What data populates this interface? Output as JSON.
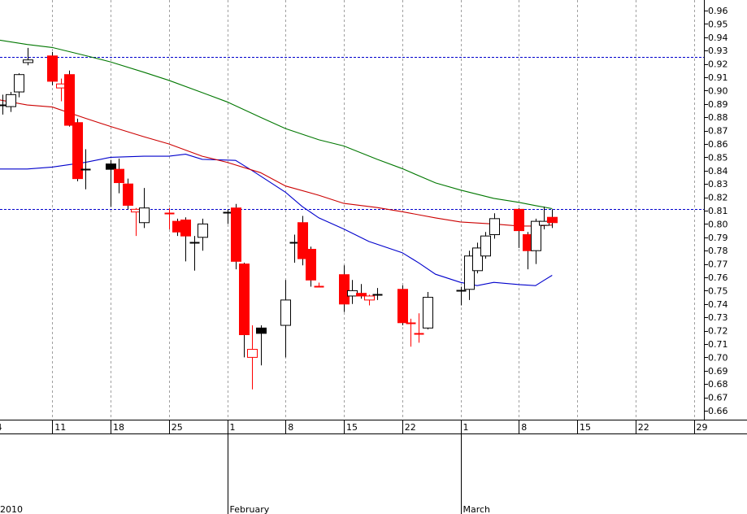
{
  "chart_data": {
    "type": "candlestick",
    "y_axis": {
      "side": "right",
      "min": 0.655,
      "max": 0.968,
      "ticks": [
        "0.96",
        "0.95",
        "0.94",
        "0.93",
        "0.92",
        "0.91",
        "0.90",
        "0.89",
        "0.88",
        "0.87",
        "0.86",
        "0.85",
        "0.84",
        "0.83",
        "0.82",
        "0.81",
        "0.80",
        "0.79",
        "0.78",
        "0.77",
        "0.76",
        "0.75",
        "0.74",
        "0.73",
        "0.72",
        "0.71",
        "0.70",
        "0.69",
        "0.68",
        "0.67",
        "0.66"
      ]
    },
    "x_axis": {
      "start": "2010-01-04",
      "end": "2010-03-22",
      "day_ticks": [
        {
          "date": "2010-01-04",
          "label": "4"
        },
        {
          "date": "2010-01-11",
          "label": "11"
        },
        {
          "date": "2010-01-18",
          "label": "18"
        },
        {
          "date": "2010-01-25",
          "label": "25"
        },
        {
          "date": "2010-02-01",
          "label": "1"
        },
        {
          "date": "2010-02-08",
          "label": "8"
        },
        {
          "date": "2010-02-15",
          "label": "15"
        },
        {
          "date": "2010-02-22",
          "label": "22"
        },
        {
          "date": "2010-03-01",
          "label": "1"
        },
        {
          "date": "2010-03-08",
          "label": "8"
        },
        {
          "date": "2010-03-15",
          "label": "15"
        },
        {
          "date": "2010-03-22",
          "label": "22"
        },
        {
          "date": "2010-03-29",
          "label": "29"
        }
      ],
      "month_labels": [
        {
          "date": "2010-01-01",
          "label": "2010"
        },
        {
          "date": "2010-02-01",
          "label": "February"
        },
        {
          "date": "2010-03-01",
          "label": "March"
        }
      ]
    },
    "grid": true,
    "reference_lines": [
      0.925,
      0.811
    ],
    "candles": [
      {
        "date": "2010-01-04",
        "o": 0.88,
        "h": 0.891,
        "l": 0.874,
        "c": 0.886,
        "style": "up"
      },
      {
        "date": "2010-01-05",
        "o": 0.89,
        "h": 0.897,
        "l": 0.882,
        "c": 0.889,
        "style": "flat"
      },
      {
        "date": "2010-01-06",
        "o": 0.888,
        "h": 0.899,
        "l": 0.884,
        "c": 0.897,
        "style": "up"
      },
      {
        "date": "2010-01-07",
        "o": 0.899,
        "h": 0.913,
        "l": 0.895,
        "c": 0.912,
        "style": "up"
      },
      {
        "date": "2010-01-08",
        "o": 0.921,
        "h": 0.932,
        "l": 0.919,
        "c": 0.923,
        "style": "up"
      },
      {
        "date": "2010-01-11",
        "o": 0.926,
        "h": 0.929,
        "l": 0.904,
        "c": 0.907,
        "style": "down"
      },
      {
        "date": "2010-01-12",
        "o": 0.902,
        "h": 0.909,
        "l": 0.892,
        "c": 0.905,
        "style": "hollow-red"
      },
      {
        "date": "2010-01-13",
        "o": 0.912,
        "h": 0.915,
        "l": 0.873,
        "c": 0.874,
        "style": "down"
      },
      {
        "date": "2010-01-14",
        "o": 0.876,
        "h": 0.879,
        "l": 0.832,
        "c": 0.834,
        "style": "down"
      },
      {
        "date": "2010-01-15",
        "o": 0.841,
        "h": 0.856,
        "l": 0.826,
        "c": 0.841,
        "style": "flat"
      },
      {
        "date": "2010-01-18",
        "o": 0.841,
        "h": 0.848,
        "l": 0.813,
        "c": 0.845,
        "style": "black"
      },
      {
        "date": "2010-01-19",
        "o": 0.841,
        "h": 0.849,
        "l": 0.823,
        "c": 0.831,
        "style": "down"
      },
      {
        "date": "2010-01-20",
        "o": 0.83,
        "h": 0.834,
        "l": 0.811,
        "c": 0.814,
        "style": "down"
      },
      {
        "date": "2010-01-21",
        "o": 0.811,
        "h": 0.812,
        "l": 0.791,
        "c": 0.809,
        "style": "hollow-red"
      },
      {
        "date": "2010-01-22",
        "o": 0.801,
        "h": 0.827,
        "l": 0.797,
        "c": 0.812,
        "style": "up"
      },
      {
        "date": "2010-01-25",
        "o": 0.808,
        "h": 0.812,
        "l": 0.796,
        "c": 0.808,
        "style": "flat-red"
      },
      {
        "date": "2010-01-26",
        "o": 0.802,
        "h": 0.804,
        "l": 0.791,
        "c": 0.794,
        "style": "down"
      },
      {
        "date": "2010-01-27",
        "o": 0.803,
        "h": 0.805,
        "l": 0.772,
        "c": 0.791,
        "style": "down"
      },
      {
        "date": "2010-01-28",
        "o": 0.786,
        "h": 0.791,
        "l": 0.765,
        "c": 0.786,
        "style": "flat"
      },
      {
        "date": "2010-01-29",
        "o": 0.79,
        "h": 0.804,
        "l": 0.78,
        "c": 0.8,
        "style": "up"
      },
      {
        "date": "2010-02-01",
        "o": 0.808,
        "h": 0.811,
        "l": 0.8,
        "c": 0.809,
        "style": "flat"
      },
      {
        "date": "2010-02-02",
        "o": 0.812,
        "h": 0.815,
        "l": 0.766,
        "c": 0.772,
        "style": "down"
      },
      {
        "date": "2010-02-03",
        "o": 0.77,
        "h": 0.771,
        "l": 0.7,
        "c": 0.717,
        "style": "down"
      },
      {
        "date": "2010-02-04",
        "o": 0.706,
        "h": 0.724,
        "l": 0.676,
        "c": 0.7,
        "style": "hollow-red"
      },
      {
        "date": "2010-02-05",
        "o": 0.722,
        "h": 0.724,
        "l": 0.694,
        "c": 0.718,
        "style": "black"
      },
      {
        "date": "2010-02-08",
        "o": 0.724,
        "h": 0.758,
        "l": 0.7,
        "c": 0.743,
        "style": "up"
      },
      {
        "date": "2010-02-09",
        "o": 0.786,
        "h": 0.792,
        "l": 0.771,
        "c": 0.786,
        "style": "flat"
      },
      {
        "date": "2010-02-10",
        "o": 0.801,
        "h": 0.806,
        "l": 0.769,
        "c": 0.774,
        "style": "down"
      },
      {
        "date": "2010-02-11",
        "o": 0.781,
        "h": 0.783,
        "l": 0.753,
        "c": 0.758,
        "style": "down"
      },
      {
        "date": "2010-02-12",
        "o": 0.754,
        "h": 0.756,
        "l": 0.753,
        "c": 0.753,
        "style": "flat-red"
      },
      {
        "date": "2010-02-15",
        "o": 0.762,
        "h": 0.769,
        "l": 0.734,
        "c": 0.74,
        "style": "down"
      },
      {
        "date": "2010-02-16",
        "o": 0.746,
        "h": 0.758,
        "l": 0.74,
        "c": 0.75,
        "style": "up"
      },
      {
        "date": "2010-02-17",
        "o": 0.748,
        "h": 0.755,
        "l": 0.744,
        "c": 0.746,
        "style": "down"
      },
      {
        "date": "2010-02-18",
        "o": 0.743,
        "h": 0.747,
        "l": 0.739,
        "c": 0.746,
        "style": "hollow-red"
      },
      {
        "date": "2010-02-19",
        "o": 0.747,
        "h": 0.752,
        "l": 0.743,
        "c": 0.747,
        "style": "flat"
      },
      {
        "date": "2010-02-22",
        "o": 0.751,
        "h": 0.754,
        "l": 0.724,
        "c": 0.726,
        "style": "down"
      },
      {
        "date": "2010-02-23",
        "o": 0.727,
        "h": 0.729,
        "l": 0.708,
        "c": 0.726,
        "style": "flat-red"
      },
      {
        "date": "2010-02-24",
        "o": 0.718,
        "h": 0.733,
        "l": 0.711,
        "c": 0.718,
        "style": "flat-red"
      },
      {
        "date": "2010-02-25",
        "o": 0.722,
        "h": 0.749,
        "l": 0.721,
        "c": 0.745,
        "style": "up"
      },
      {
        "date": "2010-03-01",
        "o": 0.75,
        "h": 0.753,
        "l": 0.739,
        "c": 0.75,
        "style": "flat"
      },
      {
        "date": "2010-03-02",
        "o": 0.751,
        "h": 0.78,
        "l": 0.743,
        "c": 0.776,
        "style": "up"
      },
      {
        "date": "2010-03-03",
        "o": 0.765,
        "h": 0.786,
        "l": 0.763,
        "c": 0.782,
        "style": "up"
      },
      {
        "date": "2010-03-04",
        "o": 0.776,
        "h": 0.794,
        "l": 0.774,
        "c": 0.791,
        "style": "up"
      },
      {
        "date": "2010-03-05",
        "o": 0.792,
        "h": 0.808,
        "l": 0.789,
        "c": 0.804,
        "style": "up"
      },
      {
        "date": "2010-03-08",
        "o": 0.811,
        "h": 0.812,
        "l": 0.782,
        "c": 0.795,
        "style": "down"
      },
      {
        "date": "2010-03-09",
        "o": 0.792,
        "h": 0.794,
        "l": 0.766,
        "c": 0.78,
        "style": "down"
      },
      {
        "date": "2010-03-10",
        "o": 0.78,
        "h": 0.804,
        "l": 0.77,
        "c": 0.802,
        "style": "up"
      },
      {
        "date": "2010-03-11",
        "o": 0.799,
        "h": 0.813,
        "l": 0.796,
        "c": 0.802,
        "style": "up"
      },
      {
        "date": "2010-03-12",
        "o": 0.805,
        "h": 0.811,
        "l": 0.797,
        "c": 0.801,
        "style": "down"
      }
    ],
    "series": [
      {
        "color": "#0000cc",
        "points": [
          {
            "date": "2010-01-04",
            "y": 0.8412
          },
          {
            "date": "2010-01-08",
            "y": 0.8412
          },
          {
            "date": "2010-01-11",
            "y": 0.8427
          },
          {
            "date": "2010-01-15",
            "y": 0.8462
          },
          {
            "date": "2010-01-18",
            "y": 0.85
          },
          {
            "date": "2010-01-22",
            "y": 0.8508
          },
          {
            "date": "2010-01-25",
            "y": 0.8508
          },
          {
            "date": "2010-01-27",
            "y": 0.8523
          },
          {
            "date": "2010-01-29",
            "y": 0.8485
          },
          {
            "date": "2010-02-02",
            "y": 0.8477
          },
          {
            "date": "2010-02-04",
            "y": 0.84
          },
          {
            "date": "2010-02-08",
            "y": 0.8238
          },
          {
            "date": "2010-02-10",
            "y": 0.8131
          },
          {
            "date": "2010-02-12",
            "y": 0.8046
          },
          {
            "date": "2010-02-15",
            "y": 0.7962
          },
          {
            "date": "2010-02-18",
            "y": 0.7869
          },
          {
            "date": "2010-02-22",
            "y": 0.7785
          },
          {
            "date": "2010-02-24",
            "y": 0.7708
          },
          {
            "date": "2010-02-26",
            "y": 0.7623
          },
          {
            "date": "2010-03-01",
            "y": 0.7562
          },
          {
            "date": "2010-03-03",
            "y": 0.7538
          },
          {
            "date": "2010-03-05",
            "y": 0.7562
          },
          {
            "date": "2010-03-08",
            "y": 0.7546
          },
          {
            "date": "2010-03-10",
            "y": 0.7538
          },
          {
            "date": "2010-03-11",
            "y": 0.7577
          },
          {
            "date": "2010-03-12",
            "y": 0.7615
          }
        ]
      },
      {
        "color": "#cc0000",
        "points": [
          {
            "date": "2010-01-04",
            "y": 0.8938
          },
          {
            "date": "2010-01-08",
            "y": 0.8892
          },
          {
            "date": "2010-01-11",
            "y": 0.8877
          },
          {
            "date": "2010-01-15",
            "y": 0.8792
          },
          {
            "date": "2010-01-18",
            "y": 0.8731
          },
          {
            "date": "2010-01-22",
            "y": 0.8654
          },
          {
            "date": "2010-01-25",
            "y": 0.86
          },
          {
            "date": "2010-01-29",
            "y": 0.8508
          },
          {
            "date": "2010-02-01",
            "y": 0.8462
          },
          {
            "date": "2010-02-05",
            "y": 0.8385
          },
          {
            "date": "2010-02-08",
            "y": 0.8285
          },
          {
            "date": "2010-02-12",
            "y": 0.8215
          },
          {
            "date": "2010-02-15",
            "y": 0.8154
          },
          {
            "date": "2010-02-19",
            "y": 0.8123
          },
          {
            "date": "2010-02-22",
            "y": 0.8092
          },
          {
            "date": "2010-02-26",
            "y": 0.8046
          },
          {
            "date": "2010-03-01",
            "y": 0.8015
          },
          {
            "date": "2010-03-05",
            "y": 0.8
          },
          {
            "date": "2010-03-08",
            "y": 0.7985
          },
          {
            "date": "2010-03-10",
            "y": 0.7985
          },
          {
            "date": "2010-03-12",
            "y": 0.7992
          }
        ]
      },
      {
        "color": "#007700",
        "points": [
          {
            "date": "2010-01-04",
            "y": 0.9385
          },
          {
            "date": "2010-01-08",
            "y": 0.9346
          },
          {
            "date": "2010-01-11",
            "y": 0.9323
          },
          {
            "date": "2010-01-15",
            "y": 0.9262
          },
          {
            "date": "2010-01-18",
            "y": 0.9215
          },
          {
            "date": "2010-01-22",
            "y": 0.9138
          },
          {
            "date": "2010-01-25",
            "y": 0.9077
          },
          {
            "date": "2010-01-29",
            "y": 0.8985
          },
          {
            "date": "2010-02-01",
            "y": 0.8915
          },
          {
            "date": "2010-02-05",
            "y": 0.88
          },
          {
            "date": "2010-02-08",
            "y": 0.8715
          },
          {
            "date": "2010-02-12",
            "y": 0.8631
          },
          {
            "date": "2010-02-15",
            "y": 0.8585
          },
          {
            "date": "2010-02-19",
            "y": 0.8485
          },
          {
            "date": "2010-02-22",
            "y": 0.8415
          },
          {
            "date": "2010-02-26",
            "y": 0.8308
          },
          {
            "date": "2010-03-01",
            "y": 0.8254
          },
          {
            "date": "2010-03-05",
            "y": 0.8192
          },
          {
            "date": "2010-03-08",
            "y": 0.8162
          },
          {
            "date": "2010-03-10",
            "y": 0.8138
          },
          {
            "date": "2010-03-12",
            "y": 0.8115
          }
        ]
      }
    ],
    "colors": {
      "up_body": "#ffffff",
      "down_body": "#ff0000",
      "black_body": "#000000",
      "wick": "#000000",
      "reference_line": "#0000cc",
      "grid": "#a0a0a0",
      "axis": "#000000"
    }
  }
}
